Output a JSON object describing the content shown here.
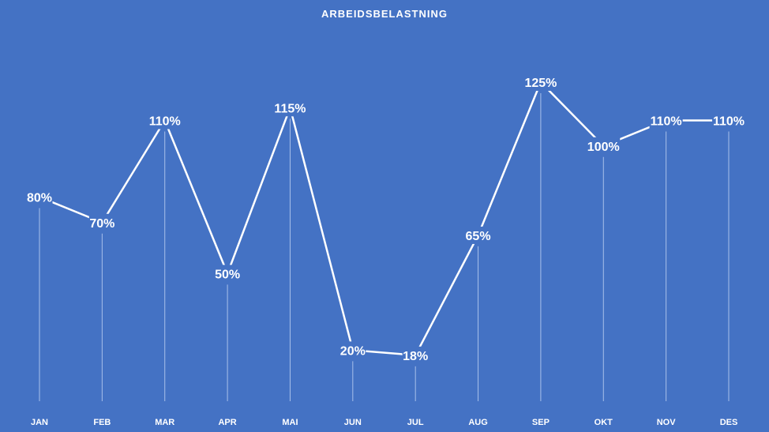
{
  "chart_data": {
    "type": "line",
    "title": "ARBEIDSBELASTNING",
    "categories": [
      "JAN",
      "FEB",
      "MAR",
      "APR",
      "MAI",
      "JUN",
      "JUL",
      "AUG",
      "SEP",
      "OKT",
      "NOV",
      "DES"
    ],
    "series": [
      {
        "values": [
          80,
          70,
          110,
          50,
          115,
          20,
          18,
          65,
          125,
          100,
          110,
          110
        ],
        "labels": [
          "80%",
          "70%",
          "110%",
          "50%",
          "115%",
          "20%",
          "18%",
          "65%",
          "125%",
          "100%",
          "110%",
          "110%"
        ]
      }
    ],
    "ylim": [
      0,
      125
    ],
    "xlabel": "",
    "ylabel": "",
    "grid": false,
    "drop_lines": true,
    "colors": {
      "background": "#4472C4",
      "line": "#ffffff",
      "drop_line": "#a9c0ea",
      "text": "#ffffff"
    }
  }
}
